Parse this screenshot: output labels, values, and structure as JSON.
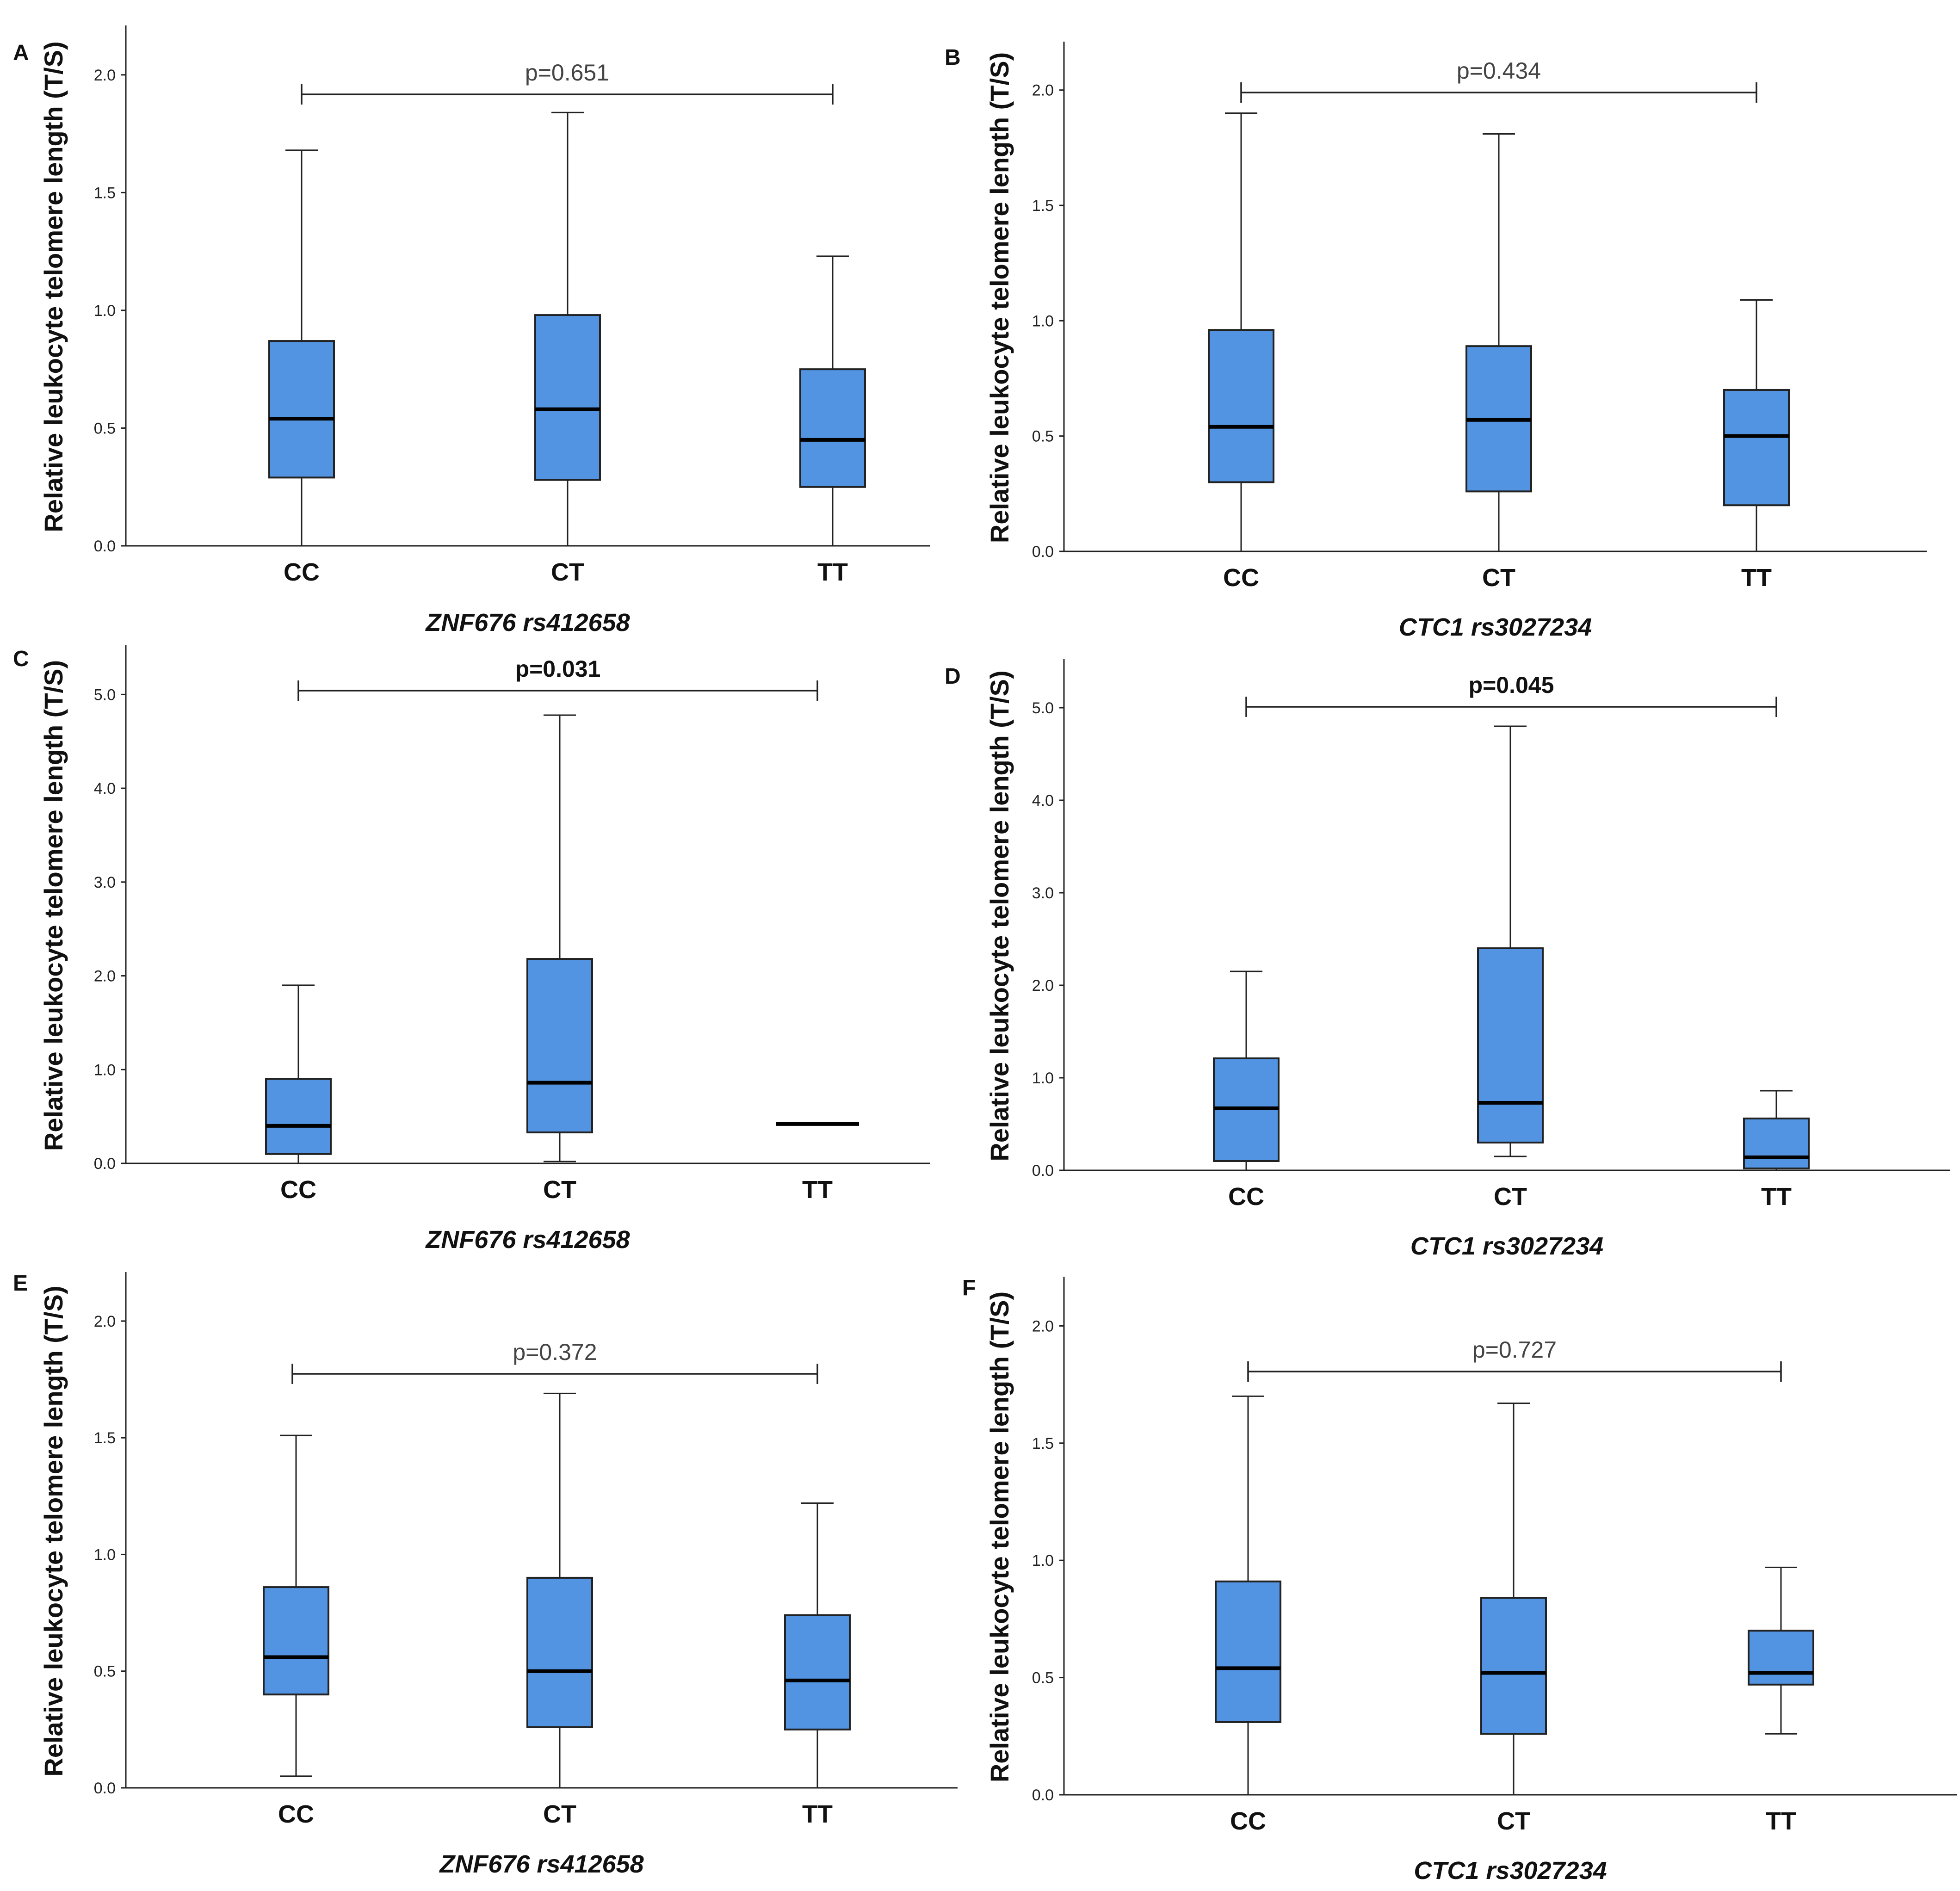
{
  "chart_data": [
    {
      "type": "boxplot",
      "panel": "A",
      "xlabel": "ZNF676 rs412658",
      "ylabel": "Relative leukocyte telomere length (T/S)",
      "ylim": [
        0,
        2.2
      ],
      "yticks": [
        "0.0",
        "0.5",
        "1.0",
        "1.5",
        "2.0"
      ],
      "ytick_values": [
        0,
        0.5,
        1.0,
        1.5,
        2.0
      ],
      "categories": [
        "CC",
        "CT",
        "TT"
      ],
      "boxes": [
        {
          "min": 0.0,
          "q1": 0.29,
          "median": 0.54,
          "q3": 0.87,
          "max": 1.68
        },
        {
          "min": 0.0,
          "q1": 0.28,
          "median": 0.58,
          "q3": 0.98,
          "max": 1.84
        },
        {
          "min": 0.0,
          "q1": 0.25,
          "median": 0.45,
          "q3": 0.75,
          "max": 1.23
        }
      ],
      "p_value": "p=0.651",
      "p_bold": false
    },
    {
      "type": "boxplot",
      "panel": "B",
      "xlabel": "CTC1 rs3027234",
      "ylabel": "Relative leukocyte telomere length (T/S)",
      "ylim": [
        0,
        2.2
      ],
      "yticks": [
        "0.0",
        "0.5",
        "1.0",
        "1.5",
        "2.0"
      ],
      "ytick_values": [
        0,
        0.5,
        1.0,
        1.5,
        2.0
      ],
      "categories": [
        "CC",
        "CT",
        "TT"
      ],
      "boxes": [
        {
          "min": 0.0,
          "q1": 0.3,
          "median": 0.54,
          "q3": 0.96,
          "max": 1.9
        },
        {
          "min": 0.0,
          "q1": 0.26,
          "median": 0.57,
          "q3": 0.89,
          "max": 1.81
        },
        {
          "min": 0.0,
          "q1": 0.2,
          "median": 0.5,
          "q3": 0.7,
          "max": 1.09
        }
      ],
      "p_value": "p=0.434",
      "p_bold": false
    },
    {
      "type": "boxplot",
      "panel": "C",
      "xlabel": "ZNF676 rs412658",
      "ylabel": "Relative leukocyte telomere length (T/S)",
      "ylim": [
        0,
        5.5
      ],
      "yticks": [
        "0.0",
        "1.0",
        "2.0",
        "3.0",
        "4.0",
        "5.0"
      ],
      "ytick_values": [
        0,
        1,
        2,
        3,
        4,
        5
      ],
      "categories": [
        "CC",
        "CT",
        "TT"
      ],
      "boxes": [
        {
          "min": 0.0,
          "q1": 0.1,
          "median": 0.4,
          "q3": 0.9,
          "max": 1.9
        },
        {
          "min": 0.02,
          "q1": 0.33,
          "median": 0.86,
          "q3": 2.18,
          "max": 4.78
        },
        {
          "min": 0.42,
          "q1": 0.42,
          "median": 0.42,
          "q3": 0.42,
          "max": 0.42
        }
      ],
      "p_value": "p=0.031",
      "p_bold": true
    },
    {
      "type": "boxplot",
      "panel": "D",
      "xlabel": "CTC1 rs3027234",
      "ylabel": "Relative leukocyte telomere length (T/S)",
      "ylim": [
        0,
        5.5
      ],
      "yticks": [
        "0.0",
        "1.0",
        "2.0",
        "3.0",
        "4.0",
        "5.0"
      ],
      "ytick_values": [
        0,
        1,
        2,
        3,
        4,
        5
      ],
      "categories": [
        "CC",
        "CT",
        "TT"
      ],
      "boxes": [
        {
          "min": 0.0,
          "q1": 0.1,
          "median": 0.67,
          "q3": 1.21,
          "max": 2.15
        },
        {
          "min": 0.15,
          "q1": 0.3,
          "median": 0.73,
          "q3": 2.4,
          "max": 4.8
        },
        {
          "min": 0.0,
          "q1": 0.02,
          "median": 0.14,
          "q3": 0.56,
          "max": 0.86
        }
      ],
      "p_value": "p=0.045",
      "p_bold": true
    },
    {
      "type": "boxplot",
      "panel": "E",
      "xlabel": "ZNF676 rs412658",
      "ylabel": "Relative leukocyte telomere length (T/S)",
      "ylim": [
        0,
        2.2
      ],
      "yticks": [
        "0.0",
        "0.5",
        "1.0",
        "1.5",
        "2.0"
      ],
      "ytick_values": [
        0,
        0.5,
        1.0,
        1.5,
        2.0
      ],
      "categories": [
        "CC",
        "CT",
        "TT"
      ],
      "boxes": [
        {
          "min": 0.05,
          "q1": 0.4,
          "median": 0.56,
          "q3": 0.86,
          "max": 1.51
        },
        {
          "min": 0.0,
          "q1": 0.26,
          "median": 0.5,
          "q3": 0.9,
          "max": 1.69
        },
        {
          "min": 0.0,
          "q1": 0.25,
          "median": 0.46,
          "q3": 0.74,
          "max": 1.22
        }
      ],
      "p_value": "p=0.372",
      "p_bold": false
    },
    {
      "type": "boxplot",
      "panel": "F",
      "xlabel": "CTC1 rs3027234",
      "ylabel": "Relative leukocyte telomere length (T/S)",
      "ylim": [
        0,
        2.2
      ],
      "yticks": [
        "0.0",
        "0.5",
        "1.0",
        "1.5",
        "2.0"
      ],
      "ytick_values": [
        0,
        0.5,
        1.0,
        1.5,
        2.0
      ],
      "categories": [
        "CC",
        "CT",
        "TT"
      ],
      "boxes": [
        {
          "min": 0.0,
          "q1": 0.31,
          "median": 0.54,
          "q3": 0.91,
          "max": 1.7
        },
        {
          "min": 0.0,
          "q1": 0.26,
          "median": 0.52,
          "q3": 0.84,
          "max": 1.67
        },
        {
          "min": 0.26,
          "q1": 0.47,
          "median": 0.52,
          "q3": 0.7,
          "max": 0.97
        }
      ],
      "p_value": "p=0.727",
      "p_bold": false
    }
  ],
  "colors": {
    "box_fill": "#5294e2",
    "line": "#222222"
  }
}
